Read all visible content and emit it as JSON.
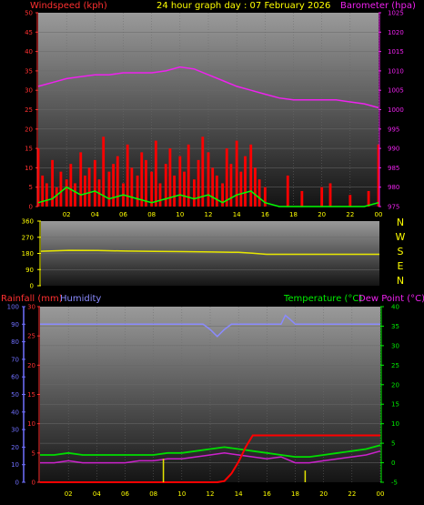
{
  "header": {
    "title": "24 hour graph day : 07 February 2026",
    "windspeed_label": "Windspeed (kph)",
    "barometer_label": "Barometer (hpa)",
    "rainfall_label": "Rainfall (mm)",
    "humidity_label": "Humidity",
    "temperature_label": "Temperature (°C)",
    "dewpoint_label": "Dew Point (°C)"
  },
  "x_tick_labels": [
    "02",
    "04",
    "06",
    "08",
    "10",
    "12",
    "14",
    "16",
    "18",
    "20",
    "22",
    "00"
  ],
  "colors": {
    "windspeed": "#ff0000",
    "gust": "#ff0000",
    "avg_wind": "#00ff00",
    "barometer": "#ee22ee",
    "direction": "#e6e600",
    "rain": "#ff0000",
    "rain_rate": "#e6e600",
    "humidity": "#8a8aff",
    "temperature": "#00dd00",
    "dewpoint": "#cc22cc",
    "title": "#ffff00",
    "dir_letters": "#ffff00",
    "left_axis": "#ff3030",
    "right_axis": "#ee22ee",
    "humidity_axis": "#7070ff",
    "temp_axis": "#00ee00"
  },
  "chart_data": [
    {
      "type": "bar",
      "panel": "wind_and_pressure",
      "title": "24 hour graph day : 07 February 2026",
      "xlabel": "",
      "x_tick_labels": [
        "02",
        "04",
        "06",
        "08",
        "10",
        "12",
        "14",
        "16",
        "18",
        "20",
        "22",
        "00"
      ],
      "x_hours_range": [
        0,
        24
      ],
      "left_axis": {
        "label": "Windspeed (kph)",
        "ylim": [
          0,
          50
        ],
        "ticks": [
          0,
          5,
          10,
          15,
          20,
          25,
          30,
          35,
          40,
          45,
          50
        ]
      },
      "right_axis": {
        "label": "Barometer (hpa)",
        "ylim": [
          975,
          1025
        ],
        "ticks": [
          975,
          980,
          985,
          990,
          995,
          1000,
          1005,
          1010,
          1015,
          1020,
          1025
        ]
      },
      "series": [
        {
          "name": "Windspeed (kph)",
          "axis": "left",
          "kind": "gust_bars",
          "x": [
            0.0,
            0.3,
            0.6,
            1.0,
            1.3,
            1.6,
            2.0,
            2.3,
            2.6,
            3.0,
            3.3,
            3.6,
            4.0,
            4.3,
            4.6,
            5.0,
            5.3,
            5.6,
            6.0,
            6.3,
            6.6,
            7.0,
            7.3,
            7.6,
            8.0,
            8.3,
            8.6,
            9.0,
            9.3,
            9.6,
            10.0,
            10.3,
            10.6,
            11.0,
            11.3,
            11.6,
            12.0,
            12.3,
            12.6,
            13.0,
            13.3,
            13.6,
            14.0,
            14.3,
            14.6,
            15.0,
            15.3,
            15.6,
            16.0,
            16.3,
            16.6,
            17.0,
            17.3,
            17.6,
            18.0,
            18.3,
            18.6,
            19.0,
            19.3,
            19.6,
            20.0,
            20.3,
            20.6,
            21.0,
            21.3,
            21.6,
            22.0,
            22.3,
            22.6,
            23.0,
            23.3,
            23.6,
            24.0
          ],
          "values": [
            15,
            8,
            6,
            12,
            5,
            9,
            7,
            11,
            6,
            14,
            8,
            10,
            12,
            7,
            18,
            9,
            11,
            13,
            6,
            16,
            10,
            8,
            14,
            12,
            9,
            17,
            6,
            11,
            15,
            8,
            13,
            9,
            16,
            7,
            12,
            18,
            14,
            10,
            8,
            6,
            15,
            11,
            17,
            9,
            13,
            16,
            10,
            7,
            5,
            0,
            0,
            0,
            0,
            8,
            0,
            0,
            4,
            0,
            0,
            0,
            5,
            0,
            6,
            0,
            0,
            0,
            3,
            0,
            0,
            0,
            4,
            0,
            16
          ]
        },
        {
          "name": "Average wind",
          "axis": "left",
          "kind": "line",
          "x": [
            0,
            1,
            2,
            3,
            4,
            5,
            6,
            7,
            8,
            9,
            10,
            11,
            12,
            13,
            14,
            15,
            16,
            17,
            18,
            19,
            20,
            21,
            22,
            23,
            24
          ],
          "values": [
            1,
            2,
            5,
            3,
            4,
            2,
            3,
            2,
            1,
            2,
            3,
            2,
            3,
            1,
            3,
            4,
            1,
            0,
            0,
            0,
            0,
            0,
            0,
            0,
            1
          ]
        },
        {
          "name": "Barometer (hpa)",
          "axis": "right",
          "kind": "line",
          "x": [
            0,
            1,
            2,
            3,
            4,
            5,
            6,
            7,
            8,
            9,
            10,
            11,
            12,
            13,
            14,
            15,
            16,
            17,
            18,
            19,
            20,
            21,
            22,
            23,
            24
          ],
          "values": [
            1006,
            1007,
            1008,
            1008.5,
            1009,
            1009,
            1009.5,
            1009.5,
            1009.5,
            1010,
            1011,
            1010.5,
            1009,
            1007.5,
            1006,
            1005,
            1004,
            1003,
            1002.5,
            1002.5,
            1002.5,
            1002.5,
            1002,
            1001.5,
            1000.5
          ]
        }
      ]
    },
    {
      "type": "line",
      "panel": "wind_direction",
      "title": "",
      "xlabel": "",
      "ylabel": "",
      "ylim": [
        0,
        360
      ],
      "y_ticks": [
        0,
        90,
        180,
        270,
        360
      ],
      "direction_letters": [
        "N",
        "W",
        "S",
        "E",
        "N"
      ],
      "series": [
        {
          "name": "Wind direction",
          "x": [
            0,
            2,
            4,
            6,
            8,
            10,
            12,
            14,
            15,
            16,
            18,
            20,
            22,
            24
          ],
          "values": [
            192,
            197,
            196,
            193,
            191,
            190,
            188,
            186,
            181,
            175,
            175,
            175,
            175,
            175
          ]
        }
      ]
    },
    {
      "type": "line",
      "panel": "rain_humidity_temperature",
      "title": "",
      "xlabel": "",
      "x_tick_labels": [
        "02",
        "04",
        "06",
        "08",
        "10",
        "12",
        "14",
        "16",
        "18",
        "20",
        "22",
        "00"
      ],
      "rain_axis": {
        "label": "Rainfall (mm)",
        "ylim": [
          0,
          30
        ],
        "ticks": [
          0,
          5,
          10,
          15,
          20,
          25,
          30
        ]
      },
      "humidity_axis": {
        "label": "Humidity",
        "ylim": [
          0,
          100
        ],
        "ticks": [
          0,
          10,
          20,
          30,
          40,
          50,
          60,
          70,
          80,
          90,
          100
        ]
      },
      "temp_axis": {
        "label": "Temperature (°C)",
        "ylim": [
          -5,
          40
        ],
        "ticks": [
          -5,
          0,
          5,
          10,
          15,
          20,
          25,
          30,
          35,
          40
        ]
      },
      "series": [
        {
          "name": "Rainfall (mm)",
          "axis": "rain",
          "x": [
            0,
            12.5,
            13,
            13.5,
            14,
            14.5,
            15,
            16,
            18,
            20,
            22,
            24
          ],
          "values": [
            0,
            0,
            0.2,
            1.5,
            3.5,
            6,
            8,
            8,
            8,
            8,
            8,
            8
          ]
        },
        {
          "name": "Rain rate",
          "axis": "rain",
          "kind": "spikes",
          "x": [
            8.7,
            18.7
          ],
          "values": [
            4,
            2
          ]
        },
        {
          "name": "Humidity",
          "axis": "humidity",
          "x": [
            0,
            2,
            4,
            6,
            8,
            10,
            11.5,
            12,
            12.5,
            13,
            13.5,
            14,
            15,
            16,
            17,
            17.3,
            17.6,
            18,
            20,
            22,
            24
          ],
          "values": [
            90,
            90,
            90,
            90,
            90,
            90,
            90,
            87,
            83,
            87,
            90,
            90,
            90,
            90,
            90,
            95,
            93,
            90,
            90,
            90,
            90
          ]
        },
        {
          "name": "Temperature (°C)",
          "axis": "temp",
          "x": [
            0,
            1,
            2,
            3,
            4,
            5,
            6,
            7,
            8,
            9,
            10,
            11,
            12,
            13,
            14,
            15,
            16,
            17,
            18,
            19,
            20,
            21,
            22,
            23,
            24
          ],
          "values": [
            2,
            2,
            2.5,
            2,
            2,
            2,
            2,
            2,
            2,
            2.5,
            2.5,
            3,
            3.5,
            4,
            3.5,
            3,
            2.5,
            2,
            1.5,
            1.5,
            2,
            2.5,
            3,
            3.5,
            4.5
          ]
        },
        {
          "name": "Dew Point (°C)",
          "axis": "temp",
          "x": [
            0,
            1,
            2,
            3,
            4,
            5,
            6,
            7,
            8,
            9,
            10,
            11,
            12,
            13,
            14,
            15,
            16,
            17,
            18,
            19,
            20,
            21,
            22,
            23,
            24
          ],
          "values": [
            0,
            0,
            0.5,
            0,
            0,
            0,
            0,
            0.5,
            0.5,
            1,
            1,
            1.5,
            2,
            2.5,
            2,
            1.5,
            1,
            1.5,
            0,
            0,
            0.5,
            1,
            1.5,
            2,
            3
          ]
        }
      ]
    }
  ]
}
